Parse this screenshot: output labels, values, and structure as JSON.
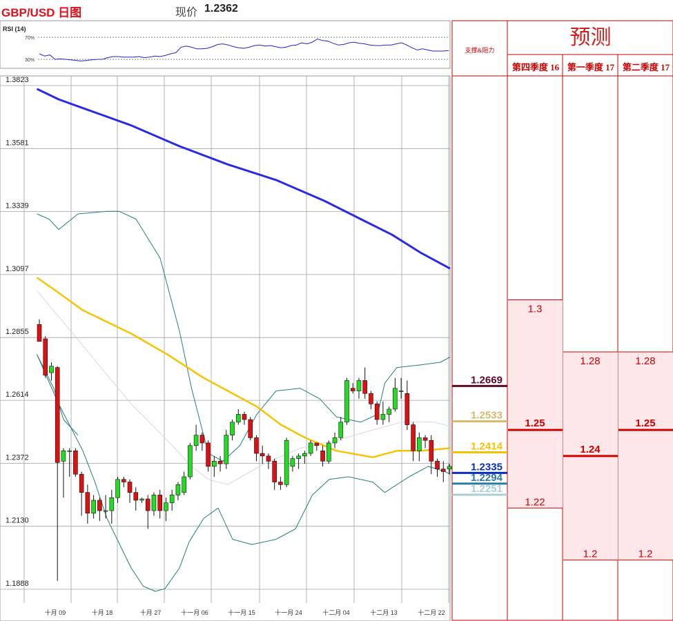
{
  "header": {
    "pair": "GBP/USD 日图",
    "price_label": "现价",
    "price_value": "1.2362"
  },
  "rsi": {
    "label": "RSI (14)",
    "upper_label": "70%",
    "lower_label": "30%",
    "values": [
      40,
      36,
      38,
      30,
      31,
      30,
      29,
      28,
      27,
      28,
      29,
      30,
      30,
      33,
      35,
      35,
      34,
      34,
      34,
      35,
      33,
      34,
      36,
      35,
      37,
      40,
      42,
      52,
      54,
      52,
      49,
      49,
      50,
      53,
      57,
      58,
      56,
      53,
      51,
      50,
      52,
      55,
      56,
      54,
      55,
      53,
      51,
      52,
      55,
      56,
      60,
      58,
      61,
      67,
      64,
      63,
      59,
      56,
      57,
      60,
      61,
      59,
      58,
      56,
      55,
      55,
      56,
      56,
      58,
      60,
      56,
      51,
      47,
      49,
      47,
      45,
      45,
      45,
      46
    ]
  },
  "chart_data": {
    "type": "candlestick",
    "title": "GBP/USD 日图",
    "ylim": [
      1.1888,
      1.3823
    ],
    "y_ticks": [
      "1.3823",
      "1.3581",
      "1.3339",
      "1.3097",
      "1.2855",
      "1.2614",
      "1.2372",
      "1.2130",
      "1.1888"
    ],
    "x_tick_labels": [
      "十月 09",
      "十月 18",
      "十月 27",
      "十一月 06",
      "十一月 15",
      "十一月 24",
      "十二月 04",
      "十二月 13",
      "十二月 22"
    ],
    "candles": [
      [
        1.2905,
        1.2925,
        1.284,
        1.284
      ],
      [
        1.285,
        1.286,
        1.27,
        1.271
      ],
      [
        1.272,
        1.276,
        1.269,
        1.2745
      ],
      [
        1.274,
        1.2745,
        1.192,
        1.2375
      ],
      [
        1.238,
        1.243,
        1.224,
        1.242
      ],
      [
        1.242,
        1.243,
        1.232,
        1.242
      ],
      [
        1.242,
        1.243,
        1.232,
        1.233
      ],
      [
        1.233,
        1.234,
        1.217,
        1.226
      ],
      [
        1.226,
        1.229,
        1.214,
        1.218
      ],
      [
        1.218,
        1.225,
        1.216,
        1.223
      ],
      [
        1.223,
        1.224,
        1.215,
        1.219
      ],
      [
        1.219,
        1.225,
        1.216,
        1.219
      ],
      [
        1.219,
        1.227,
        1.214,
        1.224
      ],
      [
        1.224,
        1.232,
        1.222,
        1.231
      ],
      [
        1.231,
        1.232,
        1.228,
        1.23
      ],
      [
        1.23,
        1.231,
        1.222,
        1.226
      ],
      [
        1.226,
        1.228,
        1.219,
        1.223
      ],
      [
        1.223,
        1.224,
        1.222,
        1.2235
      ],
      [
        1.2235,
        1.225,
        1.212,
        1.219
      ],
      [
        1.219,
        1.226,
        1.217,
        1.225
      ],
      [
        1.225,
        1.227,
        1.216,
        1.219
      ],
      [
        1.219,
        1.224,
        1.215,
        1.222
      ],
      [
        1.222,
        1.227,
        1.219,
        1.225
      ],
      [
        1.225,
        1.23,
        1.223,
        1.229
      ],
      [
        1.226,
        1.234,
        1.225,
        1.232
      ],
      [
        1.232,
        1.245,
        1.231,
        1.244
      ],
      [
        1.244,
        1.252,
        1.242,
        1.248
      ],
      [
        1.248,
        1.249,
        1.242,
        1.245
      ],
      [
        1.245,
        1.246,
        1.234,
        1.236
      ],
      [
        1.236,
        1.24,
        1.232,
        1.238
      ],
      [
        1.238,
        1.24,
        1.234,
        1.237
      ],
      [
        1.237,
        1.25,
        1.235,
        1.248
      ],
      [
        1.248,
        1.254,
        1.246,
        1.253
      ],
      [
        1.253,
        1.258,
        1.252,
        1.256
      ],
      [
        1.256,
        1.257,
        1.252,
        1.254
      ],
      [
        1.254,
        1.255,
        1.246,
        1.247
      ],
      [
        1.247,
        1.248,
        1.238,
        1.241
      ],
      [
        1.241,
        1.244,
        1.237,
        1.24
      ],
      [
        1.24,
        1.241,
        1.235,
        1.238
      ],
      [
        1.238,
        1.239,
        1.227,
        1.23
      ],
      [
        1.23,
        1.232,
        1.227,
        1.229
      ],
      [
        1.229,
        1.247,
        1.228,
        1.246
      ],
      [
        1.236,
        1.24,
        1.234,
        1.239
      ],
      [
        1.239,
        1.241,
        1.235,
        1.24
      ],
      [
        1.24,
        1.242,
        1.237,
        1.241
      ],
      [
        1.241,
        1.246,
        1.24,
        1.245
      ],
      [
        1.245,
        1.245,
        1.242,
        1.244
      ],
      [
        1.242,
        1.244,
        1.236,
        1.238
      ],
      [
        1.238,
        1.246,
        1.237,
        1.245
      ],
      [
        1.245,
        1.249,
        1.243,
        1.247
      ],
      [
        1.247,
        1.255,
        1.246,
        1.253
      ],
      [
        1.253,
        1.27,
        1.252,
        1.269
      ],
      [
        1.266,
        1.268,
        1.264,
        1.265
      ],
      [
        1.265,
        1.27,
        1.262,
        1.269
      ],
      [
        1.269,
        1.274,
        1.262,
        1.264
      ],
      [
        1.264,
        1.265,
        1.258,
        1.26
      ],
      [
        1.26,
        1.261,
        1.252,
        1.254
      ],
      [
        1.254,
        1.261,
        1.252,
        1.256
      ],
      [
        1.256,
        1.259,
        1.253,
        1.258
      ],
      [
        1.258,
        1.27,
        1.257,
        1.266
      ],
      [
        1.265,
        1.27,
        1.262,
        1.265
      ],
      [
        1.264,
        1.269,
        1.25,
        1.252
      ],
      [
        1.252,
        1.253,
        1.238,
        1.242
      ],
      [
        1.242,
        1.249,
        1.238,
        1.247
      ],
      [
        1.247,
        1.248,
        1.243,
        1.246
      ],
      [
        1.246,
        1.248,
        1.233,
        1.238
      ],
      [
        1.238,
        1.239,
        1.232,
        1.235
      ],
      [
        1.235,
        1.238,
        1.23,
        1.234
      ],
      [
        1.235,
        1.237,
        1.233,
        1.236
      ]
    ],
    "ma_blue": [
      [
        1,
        1.381
      ],
      [
        10,
        1.377
      ],
      [
        25,
        1.372
      ],
      [
        40,
        1.367
      ],
      [
        60,
        1.359
      ],
      [
        80,
        1.352
      ],
      [
        100,
        1.346
      ],
      [
        120,
        1.338
      ],
      [
        135,
        1.331
      ],
      [
        148,
        1.325
      ],
      [
        160,
        1.318
      ],
      [
        172,
        1.312
      ]
    ],
    "ma_yellow": [
      [
        1,
        1.3085
      ],
      [
        8,
        1.304
      ],
      [
        20,
        1.296
      ],
      [
        40,
        1.287
      ],
      [
        55,
        1.279
      ],
      [
        70,
        1.27
      ],
      [
        80,
        1.265
      ],
      [
        92,
        1.259
      ],
      [
        102,
        1.252
      ],
      [
        112,
        1.247
      ],
      [
        125,
        1.242
      ],
      [
        140,
        1.2395
      ],
      [
        150,
        1.242
      ],
      [
        160,
        1.242
      ],
      [
        172,
        1.243
      ]
    ],
    "sma_grey": [
      [
        1,
        1.3035
      ],
      [
        15,
        1.288
      ],
      [
        40,
        1.26
      ],
      [
        55,
        1.246
      ],
      [
        65,
        1.236
      ],
      [
        72,
        1.231
      ],
      [
        80,
        1.229
      ],
      [
        95,
        1.237
      ],
      [
        110,
        1.243
      ],
      [
        125,
        1.246
      ],
      [
        140,
        1.25
      ],
      [
        152,
        1.253
      ],
      [
        165,
        1.253
      ],
      [
        172,
        1.2515
      ]
    ],
    "bb_upper": [
      [
        1,
        1.333
      ],
      [
        6,
        1.331
      ],
      [
        10,
        1.327
      ],
      [
        18,
        1.333
      ],
      [
        30,
        1.334
      ],
      [
        35,
        1.334
      ],
      [
        42,
        1.331
      ],
      [
        52,
        1.316
      ],
      [
        60,
        1.288
      ],
      [
        65,
        1.266
      ],
      [
        70,
        1.248
      ],
      [
        72,
        1.241
      ],
      [
        78,
        1.238
      ],
      [
        85,
        1.244
      ],
      [
        92,
        1.256
      ],
      [
        100,
        1.265
      ],
      [
        110,
        1.266
      ],
      [
        118,
        1.262
      ],
      [
        125,
        1.255
      ],
      [
        135,
        1.253
      ],
      [
        142,
        1.256
      ],
      [
        145,
        1.268
      ],
      [
        150,
        1.274
      ],
      [
        160,
        1.275
      ],
      [
        168,
        1.276
      ],
      [
        172,
        1.278
      ]
    ],
    "bb_lower": [
      [
        1,
        1.279
      ],
      [
        10,
        1.26
      ],
      [
        20,
        1.242
      ],
      [
        25,
        1.23
      ],
      [
        30,
        1.216
      ],
      [
        40,
        1.197
      ],
      [
        45,
        1.19
      ],
      [
        50,
        1.188
      ],
      [
        54,
        1.189
      ],
      [
        60,
        1.197
      ],
      [
        64,
        1.207
      ],
      [
        70,
        1.216
      ],
      [
        76,
        1.22
      ],
      [
        82,
        1.208
      ],
      [
        90,
        1.206
      ],
      [
        100,
        1.208
      ],
      [
        108,
        1.212
      ],
      [
        115,
        1.225
      ],
      [
        122,
        1.231
      ],
      [
        130,
        1.232
      ],
      [
        140,
        1.23
      ],
      [
        145,
        1.226
      ],
      [
        155,
        1.232
      ],
      [
        163,
        1.236
      ],
      [
        170,
        1.234
      ],
      [
        172,
        1.233
      ]
    ],
    "bb_mid_slice": [
      [
        1,
        1.279
      ],
      [
        8,
        1.266
      ],
      [
        12,
        1.254
      ],
      [
        18,
        1.248
      ]
    ],
    "levels": [
      {
        "label": "1.2669",
        "color": "#5c0a2a"
      },
      {
        "label": "1.2533",
        "color": "#d8b86a"
      },
      {
        "label": "1.2414",
        "color": "#f5c300"
      },
      {
        "label": "1.2335",
        "color": "#0b2dbf"
      },
      {
        "label": "1.2294",
        "color": "#2a7aa0"
      },
      {
        "label": "1.2251",
        "color": "#a8cfd6"
      }
    ],
    "forecast": {
      "title": "预测",
      "sr_label": "支撑&阻力",
      "columns": [
        {
          "label": "第四季度 16",
          "high": "1.3",
          "mid": "1.25",
          "low": "1.22"
        },
        {
          "label": "第一季度 17",
          "high": "1.28",
          "mid": "1.24",
          "low": "1.2"
        },
        {
          "label": "第二季度 17",
          "high": "1.28",
          "mid": "1.25",
          "low": "1.2"
        }
      ]
    }
  }
}
